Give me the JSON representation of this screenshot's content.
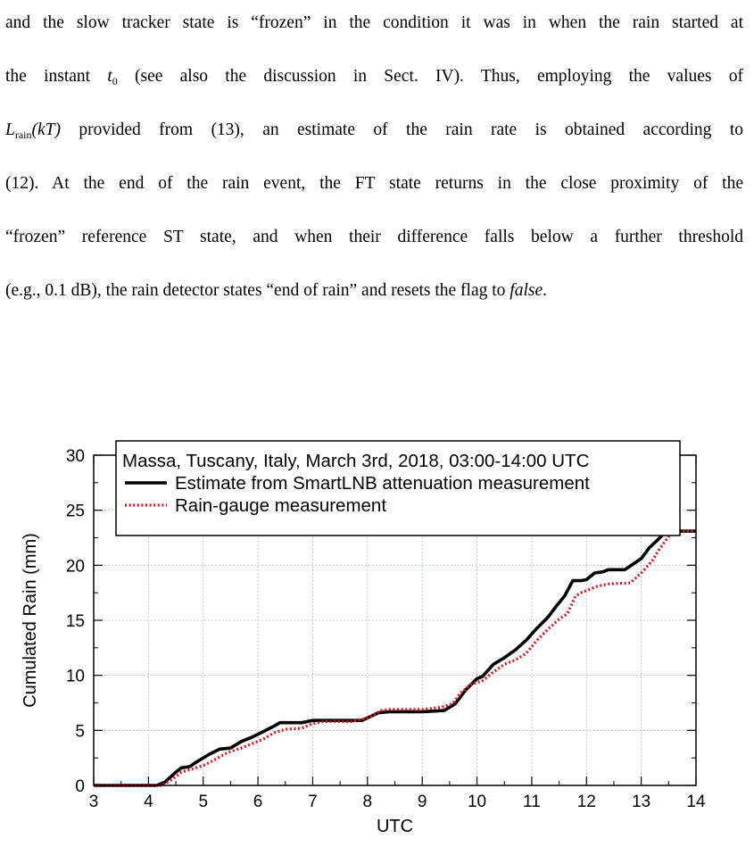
{
  "paragraph": {
    "line1": "and the slow tracker state is “frozen” in the condition it was in when the rain started at",
    "line2_a": "the instant ",
    "line2_sym": "t",
    "line2_sub": "0",
    "line2_b": " (see also the discussion in Sect. IV). Thus, employing the values of",
    "line3_sym": "L",
    "line3_sub": "rain",
    "line3_arg": "(kT)",
    "line3_b": " provided from (13), an estimate of the rain rate is obtained according to",
    "line4": "(12). At the end of the rain event, the FT state returns in the close proximity of the",
    "line5": "“frozen” reference ST state, and when their difference falls below a further threshold",
    "line6_a": "(e.g., 0.1 dB), the rain detector states “end of rain” and resets the flag to ",
    "line6_ital": "false",
    "line6_b": "."
  },
  "chart_data": {
    "type": "line",
    "title": "Massa, Tuscany, Italy, March 3rd, 2018, 03:00-14:00 UTC",
    "xlabel": "UTC",
    "ylabel": "Cumulated Rain (mm)",
    "xlim": [
      3,
      14
    ],
    "ylim": [
      0,
      30
    ],
    "xticks": [
      3,
      4,
      5,
      6,
      7,
      8,
      9,
      10,
      11,
      12,
      13,
      14
    ],
    "yticks": [
      0,
      5,
      10,
      15,
      20,
      25,
      30
    ],
    "grid": true,
    "legend_position": "top-left",
    "series": [
      {
        "name": "Estimate from SmartLNB attenuation measurement",
        "color": "#000000",
        "style": "solid",
        "points": [
          [
            3,
            0
          ],
          [
            4.15,
            0
          ],
          [
            4.3,
            0.3
          ],
          [
            4.5,
            1.2
          ],
          [
            4.6,
            1.6
          ],
          [
            4.75,
            1.7
          ],
          [
            4.9,
            2.2
          ],
          [
            5.1,
            2.8
          ],
          [
            5.3,
            3.3
          ],
          [
            5.5,
            3.4
          ],
          [
            5.7,
            4
          ],
          [
            5.9,
            4.4
          ],
          [
            6.1,
            4.9
          ],
          [
            6.3,
            5.4
          ],
          [
            6.4,
            5.7
          ],
          [
            6.8,
            5.7
          ],
          [
            7.0,
            5.9
          ],
          [
            7.5,
            5.9
          ],
          [
            7.9,
            5.9
          ],
          [
            8.2,
            6.6
          ],
          [
            8.4,
            6.7
          ],
          [
            9.0,
            6.7
          ],
          [
            9.4,
            6.8
          ],
          [
            9.6,
            7.4
          ],
          [
            9.8,
            8.7
          ],
          [
            10.0,
            9.7
          ],
          [
            10.1,
            9.9
          ],
          [
            10.3,
            11
          ],
          [
            10.5,
            11.6
          ],
          [
            10.7,
            12.3
          ],
          [
            10.9,
            13.2
          ],
          [
            11.1,
            14.3
          ],
          [
            11.3,
            15.3
          ],
          [
            11.45,
            16.3
          ],
          [
            11.6,
            17.2
          ],
          [
            11.75,
            18.6
          ],
          [
            11.9,
            18.6
          ],
          [
            12.0,
            18.7
          ],
          [
            12.15,
            19.3
          ],
          [
            12.3,
            19.4
          ],
          [
            12.4,
            19.6
          ],
          [
            12.7,
            19.6
          ],
          [
            12.85,
            20.1
          ],
          [
            13.0,
            20.6
          ],
          [
            13.15,
            21.6
          ],
          [
            13.3,
            22.3
          ],
          [
            13.45,
            23.1
          ],
          [
            13.7,
            23.1
          ],
          [
            14,
            23.1
          ]
        ]
      },
      {
        "name": "Rain-gauge measurement",
        "color": "#e0141e",
        "style": "dotted",
        "points": [
          [
            3,
            0
          ],
          [
            4.25,
            0
          ],
          [
            4.45,
            0.6
          ],
          [
            4.6,
            1.2
          ],
          [
            4.8,
            1.5
          ],
          [
            5.0,
            1.8
          ],
          [
            5.2,
            2.3
          ],
          [
            5.45,
            3
          ],
          [
            5.7,
            3.4
          ],
          [
            5.9,
            3.8
          ],
          [
            6.1,
            4.2
          ],
          [
            6.3,
            4.8
          ],
          [
            6.5,
            5.1
          ],
          [
            6.8,
            5.2
          ],
          [
            7.0,
            5.6
          ],
          [
            7.2,
            5.8
          ],
          [
            7.7,
            5.8
          ],
          [
            8.0,
            6.1
          ],
          [
            8.25,
            6.8
          ],
          [
            8.4,
            6.9
          ],
          [
            9.0,
            6.9
          ],
          [
            9.35,
            7.1
          ],
          [
            9.55,
            7.4
          ],
          [
            9.7,
            8.4
          ],
          [
            9.9,
            9.2
          ],
          [
            10.1,
            9.5
          ],
          [
            10.3,
            10.3
          ],
          [
            10.5,
            11
          ],
          [
            10.7,
            11.4
          ],
          [
            10.9,
            12
          ],
          [
            11.1,
            13.2
          ],
          [
            11.3,
            14.2
          ],
          [
            11.5,
            15.1
          ],
          [
            11.65,
            15.6
          ],
          [
            11.8,
            17.2
          ],
          [
            11.9,
            17.5
          ],
          [
            12.2,
            18.1
          ],
          [
            12.4,
            18.3
          ],
          [
            12.8,
            18.4
          ],
          [
            13.0,
            19.3
          ],
          [
            13.2,
            20.4
          ],
          [
            13.35,
            21.6
          ],
          [
            13.5,
            22.6
          ],
          [
            13.7,
            23.1
          ],
          [
            14,
            23.1
          ]
        ]
      }
    ]
  }
}
